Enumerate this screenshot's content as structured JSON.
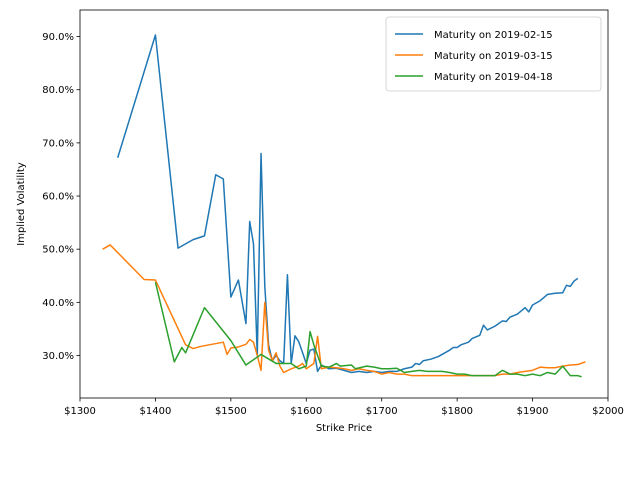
{
  "chart_data": {
    "type": "line",
    "title": "",
    "xlabel": "Strike Price",
    "ylabel": "Implied Volatility",
    "xlim": [
      1300,
      2000
    ],
    "ylim": [
      0.22,
      0.95
    ],
    "x_ticks": [
      1300,
      1400,
      1500,
      1600,
      1700,
      1800,
      1900,
      2000
    ],
    "x_tick_labels": [
      "$1300",
      "$1400",
      "$1500",
      "$1600",
      "$1700",
      "$1800",
      "$1900",
      "$2000"
    ],
    "y_ticks": [
      0.3,
      0.4,
      0.5,
      0.6,
      0.7,
      0.8,
      0.9
    ],
    "y_tick_labels": [
      "30.0%",
      "40.0%",
      "50.0%",
      "60.0%",
      "70.0%",
      "80.0%",
      "90.0%"
    ],
    "grid": false,
    "legend_position": "top-right",
    "series": [
      {
        "name": "Maturity on 2019-02-15",
        "color": "#1f77b4",
        "points": [
          [
            1350,
            0.672
          ],
          [
            1400,
            0.903
          ],
          [
            1430,
            0.502
          ],
          [
            1450,
            0.518
          ],
          [
            1465,
            0.525
          ],
          [
            1480,
            0.64
          ],
          [
            1490,
            0.632
          ],
          [
            1500,
            0.41
          ],
          [
            1510,
            0.442
          ],
          [
            1520,
            0.36
          ],
          [
            1525,
            0.552
          ],
          [
            1530,
            0.51
          ],
          [
            1535,
            0.3
          ],
          [
            1540,
            0.68
          ],
          [
            1545,
            0.43
          ],
          [
            1550,
            0.32
          ],
          [
            1555,
            0.29
          ],
          [
            1560,
            0.3
          ],
          [
            1565,
            0.29
          ],
          [
            1570,
            0.285
          ],
          [
            1575,
            0.452
          ],
          [
            1580,
            0.285
          ],
          [
            1585,
            0.337
          ],
          [
            1590,
            0.326
          ],
          [
            1600,
            0.285
          ],
          [
            1605,
            0.31
          ],
          [
            1610,
            0.312
          ],
          [
            1615,
            0.27
          ],
          [
            1620,
            0.282
          ],
          [
            1630,
            0.275
          ],
          [
            1640,
            0.276
          ],
          [
            1650,
            0.272
          ],
          [
            1660,
            0.268
          ],
          [
            1670,
            0.27
          ],
          [
            1680,
            0.268
          ],
          [
            1690,
            0.27
          ],
          [
            1700,
            0.268
          ],
          [
            1710,
            0.27
          ],
          [
            1720,
            0.27
          ],
          [
            1730,
            0.275
          ],
          [
            1740,
            0.278
          ],
          [
            1745,
            0.285
          ],
          [
            1750,
            0.283
          ],
          [
            1755,
            0.29
          ],
          [
            1765,
            0.293
          ],
          [
            1775,
            0.298
          ],
          [
            1780,
            0.302
          ],
          [
            1790,
            0.31
          ],
          [
            1795,
            0.315
          ],
          [
            1800,
            0.315
          ],
          [
            1805,
            0.32
          ],
          [
            1815,
            0.325
          ],
          [
            1820,
            0.332
          ],
          [
            1830,
            0.338
          ],
          [
            1835,
            0.357
          ],
          [
            1840,
            0.348
          ],
          [
            1850,
            0.355
          ],
          [
            1860,
            0.365
          ],
          [
            1865,
            0.364
          ],
          [
            1870,
            0.372
          ],
          [
            1880,
            0.378
          ],
          [
            1890,
            0.39
          ],
          [
            1895,
            0.382
          ],
          [
            1900,
            0.395
          ],
          [
            1910,
            0.403
          ],
          [
            1920,
            0.415
          ],
          [
            1930,
            0.417
          ],
          [
            1940,
            0.418
          ],
          [
            1945,
            0.432
          ],
          [
            1950,
            0.43
          ],
          [
            1955,
            0.44
          ],
          [
            1960,
            0.445
          ]
        ]
      },
      {
        "name": "Maturity on 2019-03-15",
        "color": "#ff7f0e",
        "points": [
          [
            1330,
            0.5
          ],
          [
            1340,
            0.508
          ],
          [
            1385,
            0.443
          ],
          [
            1400,
            0.442
          ],
          [
            1440,
            0.32
          ],
          [
            1450,
            0.313
          ],
          [
            1460,
            0.317
          ],
          [
            1490,
            0.325
          ],
          [
            1495,
            0.302
          ],
          [
            1500,
            0.314
          ],
          [
            1505,
            0.315
          ],
          [
            1510,
            0.316
          ],
          [
            1520,
            0.321
          ],
          [
            1525,
            0.33
          ],
          [
            1530,
            0.325
          ],
          [
            1535,
            0.3
          ],
          [
            1540,
            0.272
          ],
          [
            1545,
            0.4
          ],
          [
            1550,
            0.31
          ],
          [
            1555,
            0.29
          ],
          [
            1560,
            0.305
          ],
          [
            1565,
            0.28
          ],
          [
            1570,
            0.268
          ],
          [
            1580,
            0.275
          ],
          [
            1590,
            0.28
          ],
          [
            1595,
            0.285
          ],
          [
            1600,
            0.275
          ],
          [
            1610,
            0.285
          ],
          [
            1615,
            0.336
          ],
          [
            1620,
            0.275
          ],
          [
            1630,
            0.278
          ],
          [
            1640,
            0.277
          ],
          [
            1650,
            0.275
          ],
          [
            1660,
            0.272
          ],
          [
            1670,
            0.275
          ],
          [
            1680,
            0.272
          ],
          [
            1690,
            0.27
          ],
          [
            1700,
            0.265
          ],
          [
            1710,
            0.268
          ],
          [
            1720,
            0.265
          ],
          [
            1730,
            0.265
          ],
          [
            1740,
            0.262
          ],
          [
            1750,
            0.262
          ],
          [
            1760,
            0.262
          ],
          [
            1770,
            0.262
          ],
          [
            1780,
            0.262
          ],
          [
            1790,
            0.262
          ],
          [
            1800,
            0.262
          ],
          [
            1810,
            0.262
          ],
          [
            1820,
            0.262
          ],
          [
            1830,
            0.262
          ],
          [
            1840,
            0.262
          ],
          [
            1850,
            0.262
          ],
          [
            1860,
            0.265
          ],
          [
            1870,
            0.265
          ],
          [
            1880,
            0.268
          ],
          [
            1890,
            0.27
          ],
          [
            1900,
            0.272
          ],
          [
            1910,
            0.278
          ],
          [
            1920,
            0.277
          ],
          [
            1930,
            0.277
          ],
          [
            1940,
            0.28
          ],
          [
            1950,
            0.282
          ],
          [
            1960,
            0.283
          ],
          [
            1970,
            0.288
          ]
        ]
      },
      {
        "name": "Maturity on 2019-04-18",
        "color": "#2ca02c",
        "points": [
          [
            1400,
            0.438
          ],
          [
            1425,
            0.288
          ],
          [
            1435,
            0.315
          ],
          [
            1440,
            0.305
          ],
          [
            1465,
            0.39
          ],
          [
            1500,
            0.328
          ],
          [
            1520,
            0.282
          ],
          [
            1540,
            0.302
          ],
          [
            1560,
            0.285
          ],
          [
            1570,
            0.285
          ],
          [
            1580,
            0.285
          ],
          [
            1590,
            0.275
          ],
          [
            1600,
            0.28
          ],
          [
            1605,
            0.345
          ],
          [
            1610,
            0.32
          ],
          [
            1620,
            0.28
          ],
          [
            1630,
            0.278
          ],
          [
            1640,
            0.285
          ],
          [
            1645,
            0.28
          ],
          [
            1660,
            0.282
          ],
          [
            1665,
            0.275
          ],
          [
            1680,
            0.28
          ],
          [
            1690,
            0.278
          ],
          [
            1700,
            0.275
          ],
          [
            1710,
            0.275
          ],
          [
            1720,
            0.276
          ],
          [
            1730,
            0.268
          ],
          [
            1740,
            0.27
          ],
          [
            1750,
            0.272
          ],
          [
            1760,
            0.27
          ],
          [
            1770,
            0.27
          ],
          [
            1780,
            0.27
          ],
          [
            1790,
            0.268
          ],
          [
            1800,
            0.265
          ],
          [
            1810,
            0.265
          ],
          [
            1820,
            0.262
          ],
          [
            1830,
            0.262
          ],
          [
            1840,
            0.262
          ],
          [
            1850,
            0.262
          ],
          [
            1860,
            0.272
          ],
          [
            1870,
            0.265
          ],
          [
            1880,
            0.265
          ],
          [
            1890,
            0.262
          ],
          [
            1900,
            0.265
          ],
          [
            1910,
            0.262
          ],
          [
            1920,
            0.268
          ],
          [
            1930,
            0.265
          ],
          [
            1940,
            0.28
          ],
          [
            1950,
            0.262
          ],
          [
            1960,
            0.262
          ],
          [
            1965,
            0.26
          ]
        ]
      }
    ]
  }
}
